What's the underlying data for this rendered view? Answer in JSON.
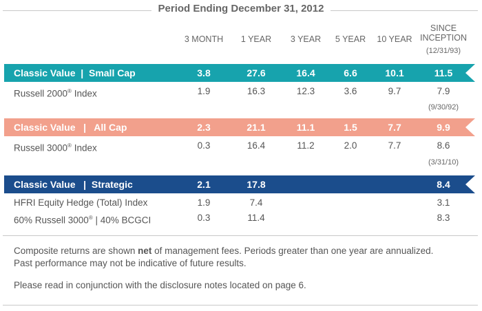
{
  "title": "Period Ending December 31, 2012",
  "columns": [
    "3 MONTH",
    "1 YEAR",
    "3 YEAR",
    "5 YEAR",
    "10 YEAR"
  ],
  "since_inception": {
    "line1": "SINCE",
    "line2": "INCEPTION"
  },
  "colors": {
    "teal": "#17a3ad",
    "salmon": "#f2a08c",
    "navy": "#1b4d8c",
    "text": "#555555"
  },
  "groups": [
    {
      "inception": "(12/31/93)",
      "fund": {
        "name": "Classic Value  |  Small Cap",
        "values": [
          "3.8",
          "27.6",
          "16.4",
          "6.6",
          "10.1",
          "11.5"
        ]
      },
      "benchmarks": [
        {
          "name": "Russell 2000",
          "reg": "®",
          "suffix": " Index",
          "values": [
            "1.9",
            "16.3",
            "12.3",
            "3.6",
            "9.7",
            "7.9"
          ]
        }
      ]
    },
    {
      "inception": "(9/30/92)",
      "fund": {
        "name": "Classic Value   |   All Cap",
        "values": [
          "2.3",
          "21.1",
          "11.1",
          "1.5",
          "7.7",
          "9.9"
        ]
      },
      "benchmarks": [
        {
          "name": "Russell 3000",
          "reg": "®",
          "suffix": " Index",
          "values": [
            "0.3",
            "16.4",
            "11.2",
            "2.0",
            "7.7",
            "8.6"
          ]
        }
      ]
    },
    {
      "inception": "(3/31/10)",
      "fund": {
        "name": "Classic Value   |  Strategic",
        "values": [
          "2.1",
          "17.8",
          "",
          "",
          "",
          "8.4"
        ]
      },
      "benchmarks": [
        {
          "name": "HFRI Equity Hedge (Total) Index",
          "reg": "",
          "suffix": "",
          "values": [
            "1.9",
            "7.4",
            "",
            "",
            "",
            "3.1"
          ]
        },
        {
          "name": "60% Russell 3000",
          "reg": "®",
          "suffix": " | 40% BCGCI",
          "values": [
            "0.3",
            "11.4",
            "",
            "",
            "",
            "8.3"
          ]
        }
      ]
    }
  ],
  "footnote": {
    "line1_pre": "Composite returns are shown ",
    "line1_bold": "net",
    "line1_post": " of management fees. Periods greater than one year are annualized.",
    "line2": "Past performance may not be indicative of future results.",
    "line3": "Please read in conjunction with the disclosure notes located on page 6."
  }
}
